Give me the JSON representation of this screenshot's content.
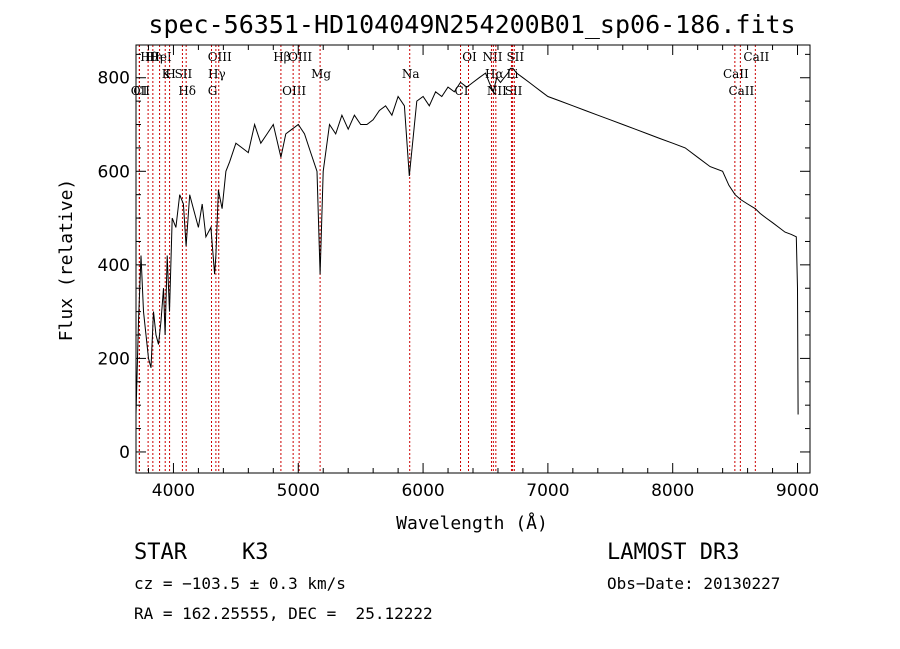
{
  "chart_data": {
    "type": "line",
    "title": "spec-56351-HD104049N254200B01_sp06-186.fits",
    "xlabel": "Wavelength (Å)",
    "ylabel": "Flux (relative)",
    "xlim": [
      3700,
      9100
    ],
    "ylim": [
      -45,
      870
    ],
    "xticks": [
      4000,
      5000,
      6000,
      7000,
      8000,
      9000
    ],
    "yticks": [
      0,
      200,
      400,
      600,
      800
    ],
    "series": [
      {
        "x": [
          3700,
          3720,
          3740,
          3760,
          3780,
          3800,
          3820,
          3840,
          3860,
          3880,
          3900,
          3920,
          3933,
          3950,
          3968,
          3990,
          4020,
          4050,
          4080,
          4101,
          4130,
          4160,
          4200,
          4230,
          4260,
          4300,
          4330,
          4340,
          4360,
          4390,
          4420,
          4450,
          4500,
          4550,
          4600,
          4650,
          4700,
          4750,
          4800,
          4861,
          4900,
          4950,
          5000,
          5050,
          5100,
          5150,
          5175,
          5200,
          5250,
          5300,
          5350,
          5400,
          5450,
          5500,
          5550,
          5600,
          5650,
          5700,
          5750,
          5800,
          5850,
          5890,
          5950,
          6000,
          6050,
          6100,
          6150,
          6200,
          6250,
          6300,
          6350,
          6400,
          6450,
          6500,
          6530,
          6563,
          6590,
          6620,
          6650,
          6680,
          6700,
          6720,
          6750,
          6800,
          6850,
          6900,
          6950,
          7000,
          7100,
          7200,
          7300,
          7400,
          7500,
          7600,
          7700,
          7800,
          7900,
          8000,
          8100,
          8200,
          8300,
          8400,
          8450,
          8500,
          8542,
          8600,
          8662,
          8700,
          8750,
          8800,
          8850,
          8900,
          8950,
          8990,
          9000,
          9005
        ],
        "values": [
          80,
          280,
          420,
          300,
          250,
          200,
          180,
          300,
          250,
          230,
          280,
          350,
          250,
          420,
          300,
          500,
          480,
          550,
          530,
          440,
          550,
          520,
          480,
          530,
          460,
          480,
          380,
          420,
          560,
          520,
          600,
          620,
          660,
          650,
          640,
          700,
          660,
          680,
          700,
          630,
          680,
          690,
          700,
          680,
          640,
          600,
          380,
          600,
          700,
          680,
          720,
          690,
          720,
          700,
          700,
          710,
          730,
          740,
          720,
          760,
          740,
          590,
          750,
          760,
          740,
          770,
          760,
          780,
          770,
          790,
          780,
          790,
          800,
          810,
          790,
          770,
          800,
          790,
          800,
          810,
          820,
          820,
          810,
          800,
          790,
          780,
          770,
          760,
          750,
          740,
          730,
          720,
          710,
          700,
          690,
          680,
          670,
          660,
          650,
          630,
          610,
          600,
          570,
          550,
          540,
          530,
          520,
          510,
          500,
          490,
          480,
          470,
          465,
          460,
          350,
          80
        ]
      }
    ],
    "lines": [
      {
        "label": "Hθ",
        "x": 3797
      },
      {
        "label": "K",
        "x": 3934
      },
      {
        "label": "Hδ",
        "x": 4102
      },
      {
        "label": "OIII",
        "x": 4363
      },
      {
        "label": "Hγ",
        "x": 4340
      },
      {
        "label": "OIII",
        "x": 4959
      },
      {
        "label": "OIII",
        "x": 5007
      },
      {
        "label": "Na",
        "x": 5893
      },
      {
        "label": "CI",
        "x": 3727
      },
      {
        "label": "HeI",
        "x": 3889
      },
      {
        "label": "SII",
        "x": 4072
      },
      {
        "label": "G",
        "x": 4305
      },
      {
        "label": "Hβ",
        "x": 4861
      },
      {
        "label": "Mg",
        "x": 5175
      },
      {
        "label": "OII",
        "x": 3727
      },
      {
        "label": "Hη",
        "x": 3835
      },
      {
        "label": "H",
        "x": 3969
      },
      {
        "label": "CI",
        "x": 6300
      },
      {
        "label": "OI",
        "x": 6364
      },
      {
        "label": "Hα",
        "x": 6563
      },
      {
        "label": "SII",
        "x": 6717
      },
      {
        "label": "NII",
        "x": 6548
      },
      {
        "label": "Li",
        "x": 6708
      },
      {
        "label": "NII",
        "x": 6583
      },
      {
        "label": "SII",
        "x": 6731
      },
      {
        "label": "CaII",
        "x": 8498
      },
      {
        "label": "CaII",
        "x": 8542
      },
      {
        "label": "CaII",
        "x": 8662
      }
    ]
  },
  "info": {
    "object_class": "STAR",
    "subclass": "K3",
    "survey": "LAMOST DR3",
    "cz": "cz = −103.5 ± 0.3 km/s",
    "obs_date": "Obs−Date: 20130227",
    "coords": "RA = 162.25555, DEC =  25.12222"
  }
}
